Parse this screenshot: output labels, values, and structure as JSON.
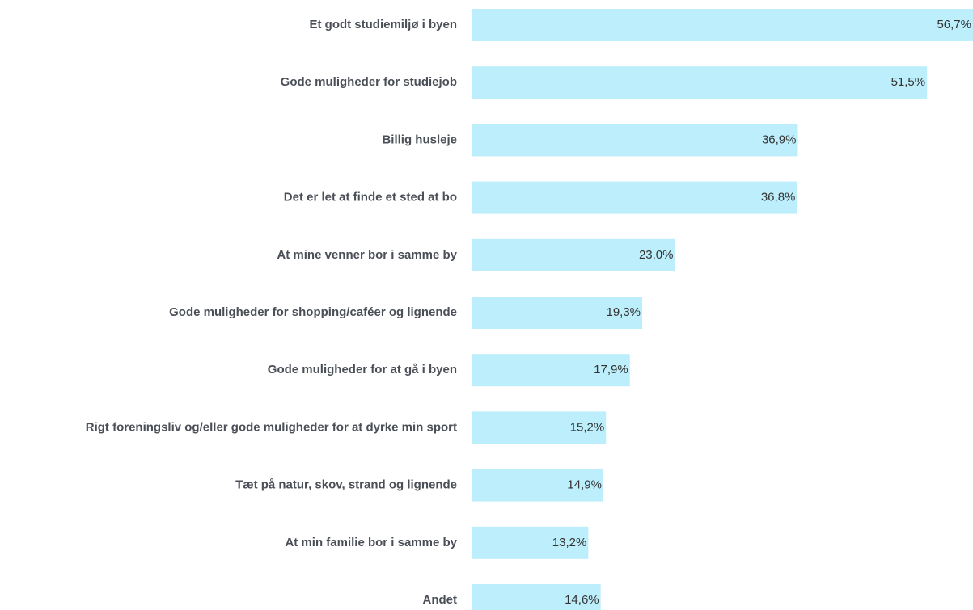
{
  "chart_data": {
    "type": "bar",
    "orientation": "horizontal",
    "categories": [
      "Et godt studiemiljø i byen",
      "Gode muligheder for studiejob",
      "Billig husleje",
      "Det er let at finde et sted at bo",
      "At mine venner bor i samme by",
      "Gode muligheder for shopping/caféer og lignende",
      "Gode muligheder for at gå i byen",
      "Rigt foreningsliv og/eller gode muligheder for at dyrke min sport",
      "Tæt på natur, skov, strand og lignende",
      "At min familie bor i samme by",
      "Andet"
    ],
    "values": [
      56.7,
      51.5,
      36.9,
      36.8,
      23.0,
      19.3,
      17.9,
      15.2,
      14.9,
      13.2,
      14.6
    ],
    "value_labels": [
      "56,7%",
      "51,5%",
      "36,9%",
      "36,8%",
      "23,0%",
      "19,3%",
      "17,9%",
      "15,2%",
      "14,9%",
      "13,2%",
      "14,6%"
    ],
    "color": "#bdeefc"
  }
}
